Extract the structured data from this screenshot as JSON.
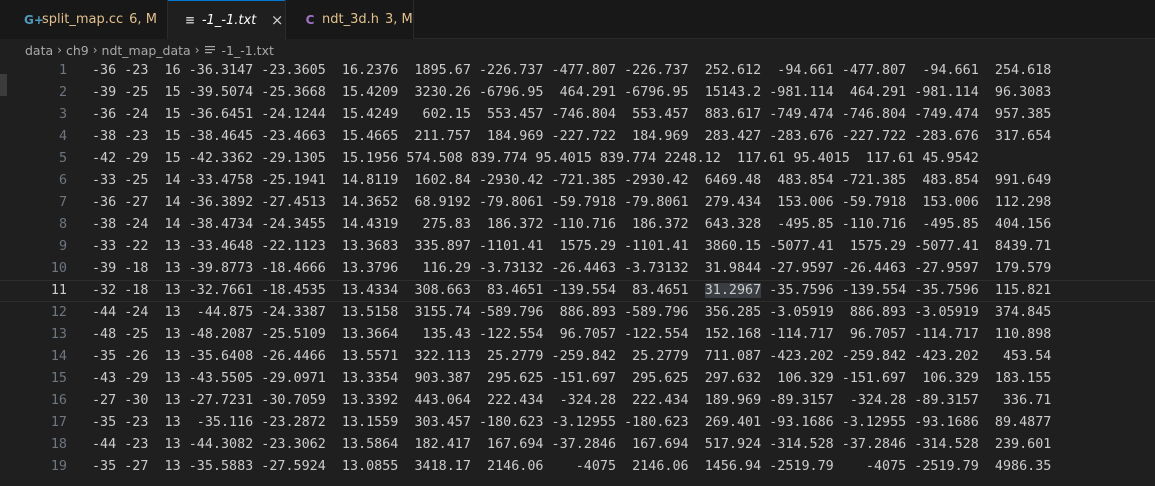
{
  "colors": {
    "background": "#1f1f1f",
    "tabbar_background": "#181818",
    "active_tab_accent": "#0078d4",
    "modified_status": "#e2c08d",
    "cpp_icon": "#519aba",
    "header_icon": "#a074c4",
    "line_number": "#6e7681",
    "text": "#cccccc"
  },
  "tabs": [
    {
      "icon": "cpp-file-icon",
      "icon_glyph": "G+",
      "name": "split_map.cc",
      "status": "6, M",
      "italic": false,
      "active": false
    },
    {
      "icon": "text-file-icon",
      "icon_glyph": "≡",
      "name": "-1_-1.txt",
      "status": "",
      "italic": true,
      "active": true,
      "close": "×"
    },
    {
      "icon": "c-header-file-icon",
      "icon_glyph": "C",
      "name": "ndt_3d.h",
      "status": "3, M",
      "italic": false,
      "active": false
    }
  ],
  "breadcrumb": {
    "parts": [
      "data",
      "ch9",
      "ndt_map_data"
    ],
    "file": "-1_-1.txt",
    "separator": "›"
  },
  "editor": {
    "current_line": 11,
    "highlight": {
      "line": 11,
      "text": "31.2967"
    },
    "lines": [
      {
        "n": "1",
        "text": "-36 -23  16 -36.3147 -23.3605  16.2376  1895.67 -226.737 -477.807 -226.737  252.612  -94.661 -477.807  -94.661  254.618"
      },
      {
        "n": "2",
        "text": "-39 -25  15 -39.5074 -25.3668  15.4209  3230.26 -6796.95  464.291 -6796.95  15143.2 -981.114  464.291 -981.114  96.3083"
      },
      {
        "n": "3",
        "text": "-36 -24  15 -36.6451 -24.1244  15.4249   602.15  553.457 -746.804  553.457  883.617 -749.474 -746.804 -749.474  957.385"
      },
      {
        "n": "4",
        "text": "-38 -23  15 -38.4645 -23.4663  15.4665  211.757  184.969 -227.722  184.969  283.427 -283.676 -227.722 -283.676  317.654"
      },
      {
        "n": "5",
        "text": "-42 -29  15 -42.3362 -29.1305  15.1956 574.508 839.774 95.4015 839.774 2248.12  117.61 95.4015  117.61 45.9542"
      },
      {
        "n": "6",
        "text": "-33 -25  14 -33.4758 -25.1941  14.8119  1602.84 -2930.42 -721.385 -2930.42  6469.48  483.854 -721.385  483.854  991.649"
      },
      {
        "n": "7",
        "text": "-36 -27  14 -36.3892 -27.4513  14.3652  68.9192 -79.8061 -59.7918 -79.8061  279.434  153.006 -59.7918  153.006  112.298"
      },
      {
        "n": "8",
        "text": "-38 -24  14 -38.4734 -24.3455  14.4319   275.83  186.372 -110.716  186.372  643.328  -495.85 -110.716  -495.85  404.156"
      },
      {
        "n": "9",
        "text": "-33 -22  13 -33.4648 -22.1123  13.3683  335.897 -1101.41  1575.29 -1101.41  3860.15 -5077.41  1575.29 -5077.41  8439.71"
      },
      {
        "n": "10",
        "text": "-39 -18  13 -39.8773 -18.4666  13.3796   116.29 -3.73132 -26.4463 -3.73132  31.9844 -27.9597 -26.4463 -27.9597  179.579"
      },
      {
        "n": "11",
        "text": "-32 -18  13 -32.7661 -18.4535  13.4334  308.663  83.4651 -139.554  83.4651  31.2967 -35.7596 -139.554 -35.7596  115.821"
      },
      {
        "n": "12",
        "text": "-44 -24  13  -44.875 -24.3387  13.5158  3155.74 -589.796  886.893 -589.796  356.285 -3.05919  886.893 -3.05919  374.845"
      },
      {
        "n": "13",
        "text": "-48 -25  13 -48.2087 -25.5109  13.3664   135.43 -122.554  96.7057 -122.554  152.168 -114.717  96.7057 -114.717  110.898"
      },
      {
        "n": "14",
        "text": "-35 -26  13 -35.6408 -26.4466  13.5571  322.113  25.2779 -259.842  25.2779  711.087 -423.202 -259.842 -423.202   453.54"
      },
      {
        "n": "15",
        "text": "-43 -29  13 -43.5505 -29.0971  13.3354  903.387  295.625 -151.697  295.625  297.632  106.329 -151.697  106.329  183.155"
      },
      {
        "n": "16",
        "text": "-27 -30  13 -27.7231 -30.7059  13.3392  443.064  222.434  -324.28  222.434  189.969 -89.3157  -324.28 -89.3157   336.71"
      },
      {
        "n": "17",
        "text": "-35 -23  13  -35.116 -23.2872  13.1559  303.457 -180.623 -3.12955 -180.623  269.401 -93.1686 -3.12955 -93.1686  89.4877"
      },
      {
        "n": "18",
        "text": "-44 -23  13 -44.3082 -23.3062  13.5864  182.417  167.694 -37.2846  167.694  517.924 -314.528 -37.2846 -314.528  239.601"
      },
      {
        "n": "19",
        "text": "-35 -27  13 -35.5883 -27.5924  13.0855  3418.17  2146.06    -4075  2146.06  1456.94 -2519.79    -4075 -2519.79  4986.35"
      }
    ]
  }
}
